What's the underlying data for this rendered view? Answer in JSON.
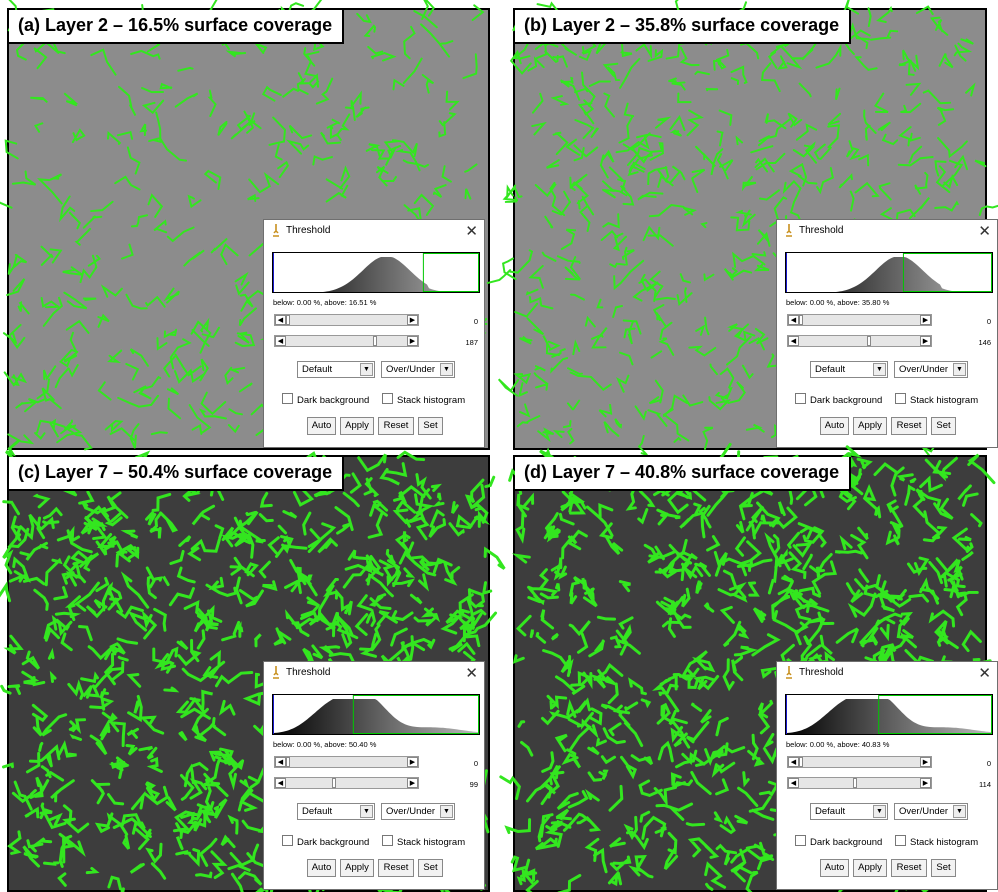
{
  "panels": [
    {
      "id": "a",
      "caption": "(a) Layer 2 – 16.5% surface coverage",
      "green_density": 0.4,
      "dialog": {
        "title": "Threshold",
        "stats": "below: 0.00 %,  above: 16.51 %",
        "min_value": "0",
        "max_value": "187",
        "method": "Default",
        "mode": "Over/Under",
        "dark_background": "Dark background",
        "stack_histogram": "Stack histogram",
        "buttons": [
          "Auto",
          "Apply",
          "Reset",
          "Set"
        ],
        "threshold_fraction": 0.73
      }
    },
    {
      "id": "b",
      "caption": "(b) Layer 2 – 35.8% surface coverage",
      "green_density": 0.6,
      "dialog": {
        "title": "Threshold",
        "stats": "below: 0.00 %,  above: 35.80 %",
        "min_value": "0",
        "max_value": "146",
        "method": "Default",
        "mode": "Over/Under",
        "dark_background": "Dark background",
        "stack_histogram": "Stack histogram",
        "buttons": [
          "Auto",
          "Apply",
          "Reset",
          "Set"
        ],
        "threshold_fraction": 0.57
      }
    },
    {
      "id": "c",
      "caption": "(c) Layer 7 – 50.4% surface coverage",
      "green_density": 0.85,
      "dialog": {
        "title": "Threshold",
        "stats": "below: 0.00 %,  above: 50.40 %",
        "min_value": "0",
        "max_value": "99",
        "method": "Default",
        "mode": "Over/Under",
        "dark_background": "Dark background",
        "stack_histogram": "Stack histogram",
        "buttons": [
          "Auto",
          "Apply",
          "Reset",
          "Set"
        ],
        "threshold_fraction": 0.39
      }
    },
    {
      "id": "d",
      "caption": "(d) Layer 7 – 40.8% surface coverage",
      "green_density": 0.8,
      "dialog": {
        "title": "Threshold",
        "stats": "below: 0.00 %,  above: 40.83 %",
        "min_value": "0",
        "max_value": "114",
        "method": "Default",
        "mode": "Over/Under",
        "dark_background": "Dark background",
        "stack_histogram": "Stack histogram",
        "buttons": [
          "Auto",
          "Apply",
          "Reset",
          "Set"
        ],
        "threshold_fraction": 0.45
      }
    }
  ],
  "colors": {
    "green": "#33e61f",
    "gray_background": "#8c8c8c",
    "dark_background": "#3d3d3d",
    "threshold_line": "#00c800",
    "histogram_start": "#000000",
    "histogram_end": "#bbbbbb"
  },
  "icons": {
    "dialog": "imagej-microscope-icon",
    "close": "close-icon"
  }
}
